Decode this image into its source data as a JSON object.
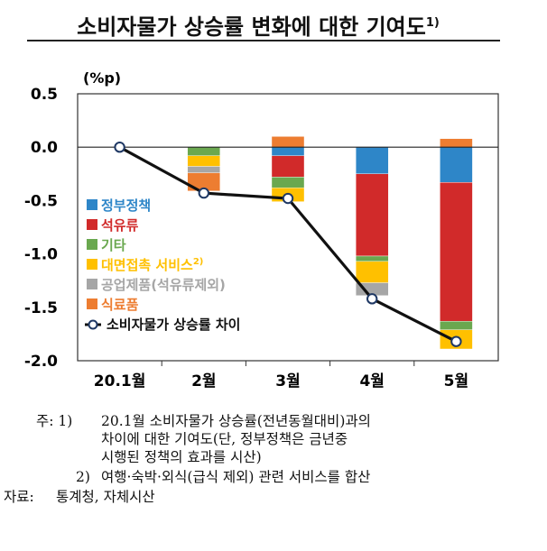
{
  "title": "소비자물가 상승률 변화에 대한 기여도",
  "title_sup": "1)",
  "chart_data": {
    "type": "bar",
    "stacked": true,
    "unit_label": "(%p)",
    "categories": [
      "20.1월",
      "2월",
      "3월",
      "4월",
      "5월"
    ],
    "ylim": [
      -2.0,
      0.5
    ],
    "yticks": [
      "0.5",
      "0.0",
      "-0.5",
      "-1.0",
      "-1.5",
      "-2.0"
    ],
    "ytick_values": [
      0.5,
      0.0,
      -0.5,
      -1.0,
      -1.5,
      -2.0
    ],
    "grid": false,
    "legend_position": "left",
    "series": [
      {
        "name": "정부정책",
        "color": "#2e86c8",
        "values": [
          0,
          0.0,
          -0.08,
          -0.25,
          -0.33
        ]
      },
      {
        "name": "석유류",
        "color": "#d12a2a",
        "values": [
          0,
          0.0,
          -0.2,
          -0.77,
          -1.3
        ]
      },
      {
        "name": "기타",
        "color": "#6aa84f",
        "values": [
          0,
          -0.08,
          -0.1,
          -0.05,
          -0.08
        ]
      },
      {
        "name": "대면접촉 서비스",
        "name_sup": "2)",
        "color": "#ffc000",
        "values": [
          0,
          -0.1,
          -0.13,
          -0.2,
          -0.18
        ]
      },
      {
        "name": "공업제품(석유류제외)",
        "color": "#a6a6a6",
        "values": [
          0,
          -0.06,
          0.0,
          -0.12,
          0.0
        ]
      },
      {
        "name": "식료품",
        "color": "#ed7d31",
        "values": [
          0,
          -0.17,
          0.1,
          0.0,
          0.08
        ]
      }
    ],
    "line": {
      "name": "소비자물가 상승률 차이",
      "values": [
        0.0,
        -0.43,
        -0.48,
        -1.42,
        -1.82
      ]
    }
  },
  "notes": {
    "n1_prefix": "주: 1)",
    "n1_line1": "20.1월 소비자물가 상승률(전년동월대비)과의",
    "n1_line2": "차이에 대한 기여도(단, 정부정책은 금년중",
    "n1_line3": "시행된 정책의 효과를 시산)",
    "n2_prefix": "2)",
    "n2_text": "여행·숙박·외식(급식 제외) 관련 서비스를 합산",
    "source_label": "자료:",
    "source_text": "통계청, 자체시산"
  }
}
